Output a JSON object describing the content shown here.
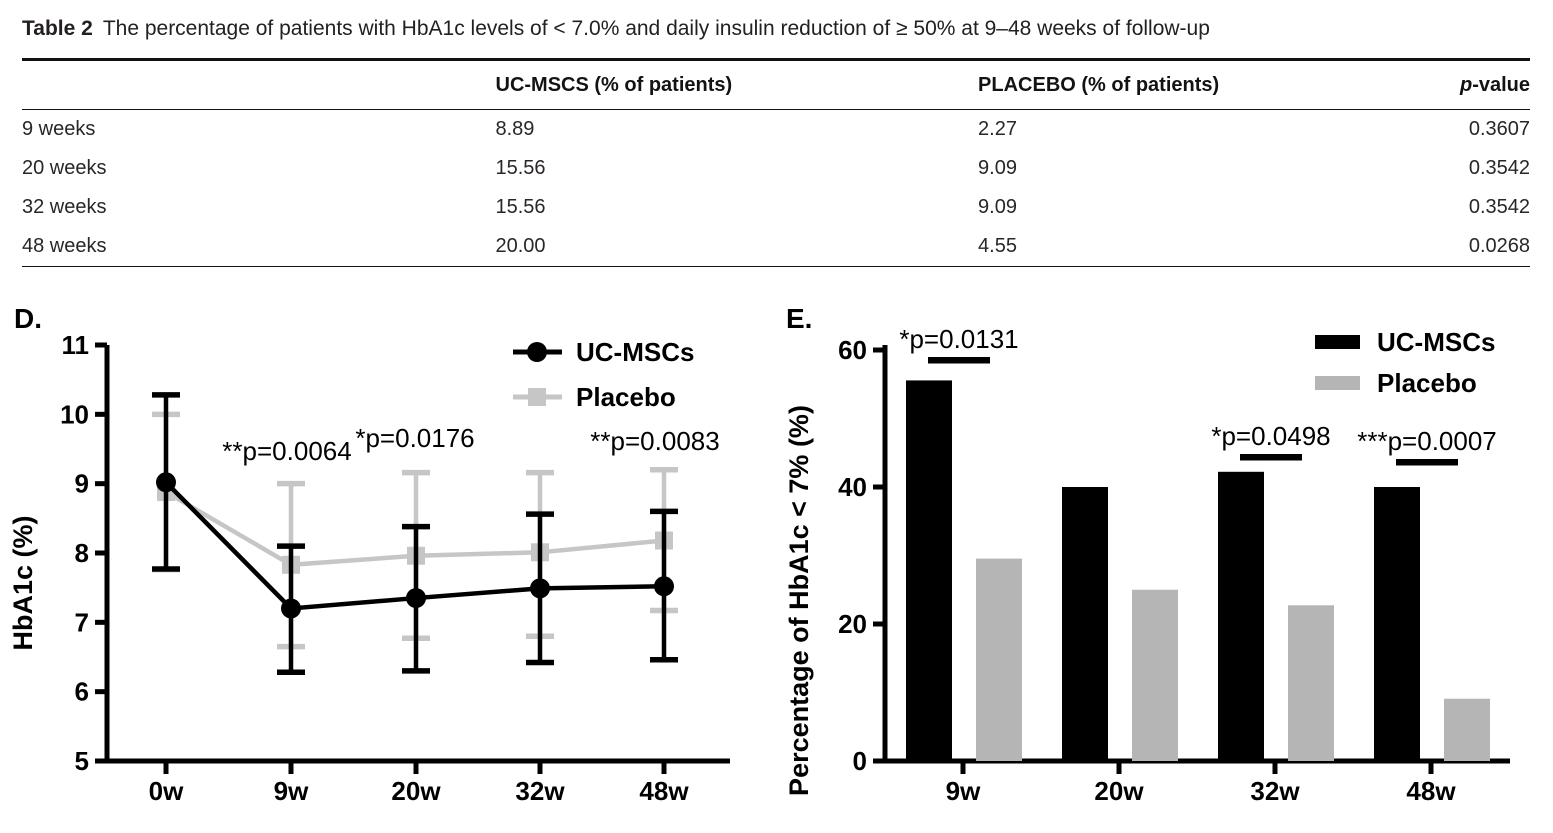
{
  "table": {
    "caption_label": "Table 2",
    "caption_text": "The percentage of patients with HbA1c levels of < 7.0% and daily insulin reduction of ≥ 50% at 9–48 weeks of follow-up",
    "columns": {
      "row_header": "",
      "ucmscs": "UC-MSCS (% of patients)",
      "placebo": "PLACEBO (% of patients)",
      "p_italic": "p",
      "p_rest": "-value"
    },
    "rows": [
      {
        "label": "9 weeks",
        "ucmscs": "8.89",
        "placebo": "2.27",
        "p": "0.3607"
      },
      {
        "label": "20 weeks",
        "ucmscs": "15.56",
        "placebo": "9.09",
        "p": "0.3542"
      },
      {
        "label": "32 weeks",
        "ucmscs": "15.56",
        "placebo": "9.09",
        "p": "0.3542"
      },
      {
        "label": "48 weeks",
        "ucmscs": "20.00",
        "placebo": "4.55",
        "p": "0.0268"
      }
    ]
  },
  "chart_data": [
    {
      "panel": "D.",
      "type": "line",
      "x": [
        "0w",
        "9w",
        "20w",
        "32w",
        "48w"
      ],
      "ylabel": "HbA1c (%)",
      "ylim": [
        5,
        11
      ],
      "yticks": [
        5,
        6,
        7,
        8,
        9,
        10,
        11
      ],
      "grid": false,
      "legend_position": "top-right",
      "series": [
        {
          "name": "Placebo",
          "color": "#c6c6c6",
          "marker": "square",
          "values": [
            8.88,
            7.83,
            7.96,
            8.01,
            8.18
          ],
          "err_low": [
            7.76,
            6.65,
            6.77,
            6.8,
            7.17
          ],
          "err_high": [
            10.0,
            9.0,
            9.16,
            9.16,
            9.2
          ]
        },
        {
          "name": "UC-MSCs",
          "color": "#000000",
          "marker": "circle",
          "values": [
            9.02,
            7.2,
            7.35,
            7.49,
            7.52
          ],
          "err_low": [
            7.77,
            6.28,
            6.3,
            6.42,
            6.46
          ],
          "err_high": [
            10.28,
            8.1,
            8.38,
            8.56,
            8.6
          ]
        }
      ],
      "legend_order": [
        "UC-MSCs",
        "Placebo"
      ],
      "annotations": [
        {
          "text": "**p=0.0064",
          "x": "9w"
        },
        {
          "text": "*p=0.0176",
          "x": "20w"
        },
        {
          "text": "**p=0.0083",
          "x": "48w"
        }
      ]
    },
    {
      "panel": "E.",
      "type": "bar",
      "categories": [
        "9w",
        "20w",
        "32w",
        "48w"
      ],
      "ylabel": "Percentage of HbA1c < 7% (%)",
      "ylim": [
        0,
        60
      ],
      "yticks": [
        0,
        20,
        40,
        60
      ],
      "grid": false,
      "legend_position": "top-right",
      "series": [
        {
          "name": "UC-MSCs",
          "color": "#000000",
          "values": [
            55.56,
            40.0,
            42.22,
            40.0
          ]
        },
        {
          "name": "Placebo",
          "color": "#b5b5b5",
          "values": [
            29.55,
            25.0,
            22.73,
            9.09
          ]
        }
      ],
      "annotations": [
        {
          "text": "*p=0.0131",
          "x": "9w"
        },
        {
          "text": "*p=0.0498",
          "x": "32w"
        },
        {
          "text": "***p=0.0007",
          "x": "48w"
        }
      ]
    }
  ]
}
